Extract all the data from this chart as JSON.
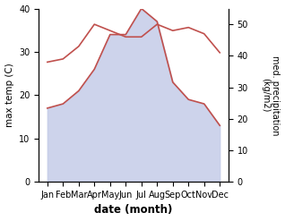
{
  "months": [
    "Jan",
    "Feb",
    "Mar",
    "Apr",
    "May",
    "Jun",
    "Jul",
    "Aug",
    "Sep",
    "Oct",
    "Nov",
    "Dec"
  ],
  "max_temp": [
    17,
    18,
    21,
    26,
    34,
    34,
    40,
    37,
    23,
    19,
    18,
    13
  ],
  "precipitation": [
    38,
    39,
    43,
    50,
    48,
    46,
    46,
    50,
    48,
    49,
    47,
    41
  ],
  "temp_color": "#c0504d",
  "precip_color": "#c0504d",
  "fill_color": "#c5cce8",
  "fill_alpha": 0.85,
  "xlabel": "date (month)",
  "ylabel_left": "max temp (C)",
  "ylabel_right": "med. precipitation\n(kg/m2)",
  "ylim_left": [
    0,
    40
  ],
  "ylim_right": [
    0,
    55
  ],
  "yticks_left": [
    0,
    10,
    20,
    30,
    40
  ],
  "yticks_right": [
    0,
    10,
    20,
    30,
    40,
    50
  ],
  "bg_color": "#ffffff"
}
